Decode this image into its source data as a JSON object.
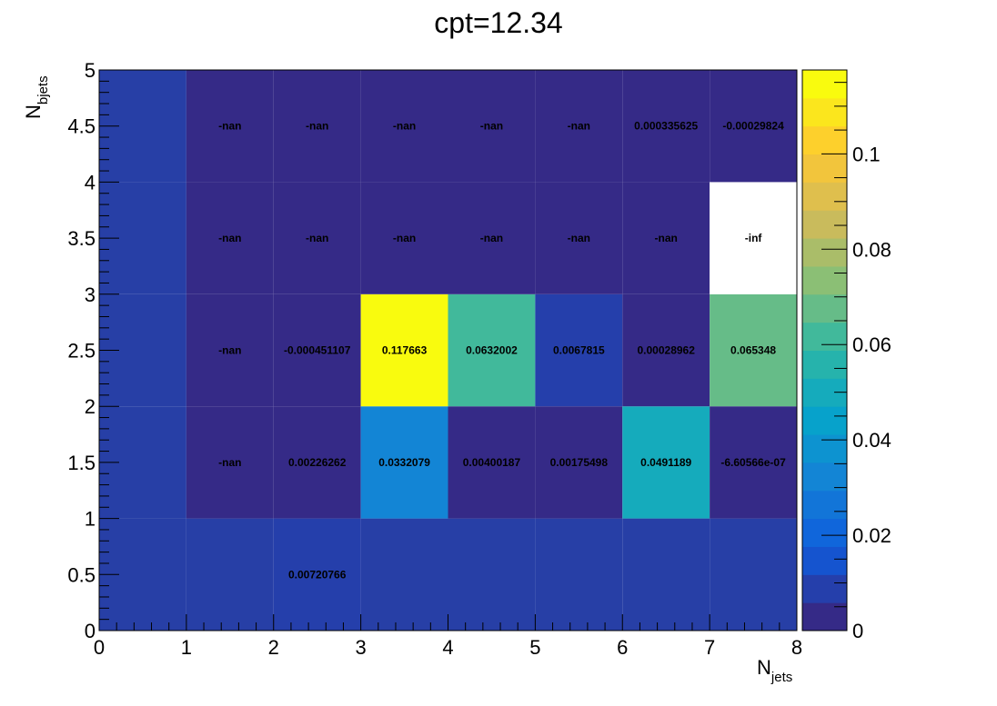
{
  "chart_data": {
    "type": "heatmap",
    "title": "cpt=12.34",
    "xlabel": {
      "main": "N",
      "sub": "jets"
    },
    "ylabel": {
      "main": "N",
      "sub": "bjets"
    },
    "xlim": [
      0,
      8
    ],
    "ylim": [
      0,
      5
    ],
    "x_bins": [
      0,
      1,
      2,
      3,
      4,
      5,
      6,
      7,
      8
    ],
    "y_bins": [
      0,
      1,
      2,
      3,
      4,
      5
    ],
    "x_ticks": [
      {
        "value": 0,
        "label": "0"
      },
      {
        "value": 1,
        "label": "1"
      },
      {
        "value": 2,
        "label": "2"
      },
      {
        "value": 3,
        "label": "3"
      },
      {
        "value": 4,
        "label": "4"
      },
      {
        "value": 5,
        "label": "5"
      },
      {
        "value": 6,
        "label": "6"
      },
      {
        "value": 7,
        "label": "7"
      },
      {
        "value": 8,
        "label": "8"
      }
    ],
    "y_ticks": [
      {
        "value": 0,
        "label": "0"
      },
      {
        "value": 0.5,
        "label": "0.5"
      },
      {
        "value": 1,
        "label": "1"
      },
      {
        "value": 1.5,
        "label": "1.5"
      },
      {
        "value": 2,
        "label": "2"
      },
      {
        "value": 2.5,
        "label": "2.5"
      },
      {
        "value": 3,
        "label": "3"
      },
      {
        "value": 3.5,
        "label": "3.5"
      },
      {
        "value": 4,
        "label": "4"
      },
      {
        "value": 4.5,
        "label": "4.5"
      },
      {
        "value": 5,
        "label": "5"
      }
    ],
    "colorbar": {
      "range": [
        0,
        0.1176
      ],
      "palette": [
        "#352a87",
        "#0f5cdd",
        "#1481d6",
        "#06a4ca",
        "#2eb7a4",
        "#87bf77",
        "#d1bb59",
        "#fec832",
        "#f9fb0e"
      ],
      "ticks": [
        {
          "value": 0,
          "label": "0"
        },
        {
          "value": 0.02,
          "label": "0.02"
        },
        {
          "value": 0.04,
          "label": "0.04"
        },
        {
          "value": 0.06,
          "label": "0.06"
        },
        {
          "value": 0.08,
          "label": "0.08"
        },
        {
          "value": 0.1,
          "label": "0.1"
        }
      ]
    },
    "cells": [
      {
        "ix": 0,
        "iy": 0,
        "value": 0,
        "label": ""
      },
      {
        "ix": 1,
        "iy": 0,
        "value": 0,
        "label": ""
      },
      {
        "ix": 2,
        "iy": 0,
        "value": 0.00720766,
        "label": "0.00720766"
      },
      {
        "ix": 3,
        "iy": 0,
        "value": 0,
        "label": ""
      },
      {
        "ix": 4,
        "iy": 0,
        "value": 0,
        "label": ""
      },
      {
        "ix": 5,
        "iy": 0,
        "value": 0,
        "label": ""
      },
      {
        "ix": 6,
        "iy": 0,
        "value": 0,
        "label": ""
      },
      {
        "ix": 7,
        "iy": 0,
        "value": 0,
        "label": ""
      },
      {
        "ix": 0,
        "iy": 1,
        "value": 0,
        "label": ""
      },
      {
        "ix": 1,
        "iy": 1,
        "value": "nan",
        "label": "-nan"
      },
      {
        "ix": 2,
        "iy": 1,
        "value": 0.00226262,
        "label": "0.00226262"
      },
      {
        "ix": 3,
        "iy": 1,
        "value": 0.0332079,
        "label": "0.0332079"
      },
      {
        "ix": 4,
        "iy": 1,
        "value": 0.00400187,
        "label": "0.00400187"
      },
      {
        "ix": 5,
        "iy": 1,
        "value": 0.00175498,
        "label": "0.00175498"
      },
      {
        "ix": 6,
        "iy": 1,
        "value": 0.0491189,
        "label": "0.0491189"
      },
      {
        "ix": 7,
        "iy": 1,
        "value": -6.60566e-07,
        "label": "-6.60566e-07"
      },
      {
        "ix": 0,
        "iy": 2,
        "value": 0,
        "label": ""
      },
      {
        "ix": 1,
        "iy": 2,
        "value": "nan",
        "label": "-nan"
      },
      {
        "ix": 2,
        "iy": 2,
        "value": -0.000451107,
        "label": "-0.000451107"
      },
      {
        "ix": 3,
        "iy": 2,
        "value": 0.117663,
        "label": "0.117663"
      },
      {
        "ix": 4,
        "iy": 2,
        "value": 0.0632002,
        "label": "0.0632002"
      },
      {
        "ix": 5,
        "iy": 2,
        "value": 0.0067815,
        "label": "0.0067815"
      },
      {
        "ix": 6,
        "iy": 2,
        "value": 0.00028962,
        "label": "0.00028962"
      },
      {
        "ix": 7,
        "iy": 2,
        "value": 0.065348,
        "label": "0.065348"
      },
      {
        "ix": 0,
        "iy": 3,
        "value": 0,
        "label": ""
      },
      {
        "ix": 1,
        "iy": 3,
        "value": "nan",
        "label": "-nan"
      },
      {
        "ix": 2,
        "iy": 3,
        "value": "nan",
        "label": "-nan"
      },
      {
        "ix": 3,
        "iy": 3,
        "value": "nan",
        "label": "-nan"
      },
      {
        "ix": 4,
        "iy": 3,
        "value": "nan",
        "label": "-nan"
      },
      {
        "ix": 5,
        "iy": 3,
        "value": "nan",
        "label": "-nan"
      },
      {
        "ix": 6,
        "iy": 3,
        "value": "nan",
        "label": "-nan"
      },
      {
        "ix": 7,
        "iy": 3,
        "value": "-inf",
        "label": "-inf"
      },
      {
        "ix": 0,
        "iy": 4,
        "value": 0,
        "label": ""
      },
      {
        "ix": 1,
        "iy": 4,
        "value": "nan",
        "label": "-nan"
      },
      {
        "ix": 2,
        "iy": 4,
        "value": "nan",
        "label": "-nan"
      },
      {
        "ix": 3,
        "iy": 4,
        "value": "nan",
        "label": "-nan"
      },
      {
        "ix": 4,
        "iy": 4,
        "value": "nan",
        "label": "-nan"
      },
      {
        "ix": 5,
        "iy": 4,
        "value": "nan",
        "label": "-nan"
      },
      {
        "ix": 6,
        "iy": 4,
        "value": 0.000335625,
        "label": "0.000335625"
      },
      {
        "ix": 7,
        "iy": 4,
        "value": -0.00029824,
        "label": "-0.00029824"
      }
    ]
  }
}
